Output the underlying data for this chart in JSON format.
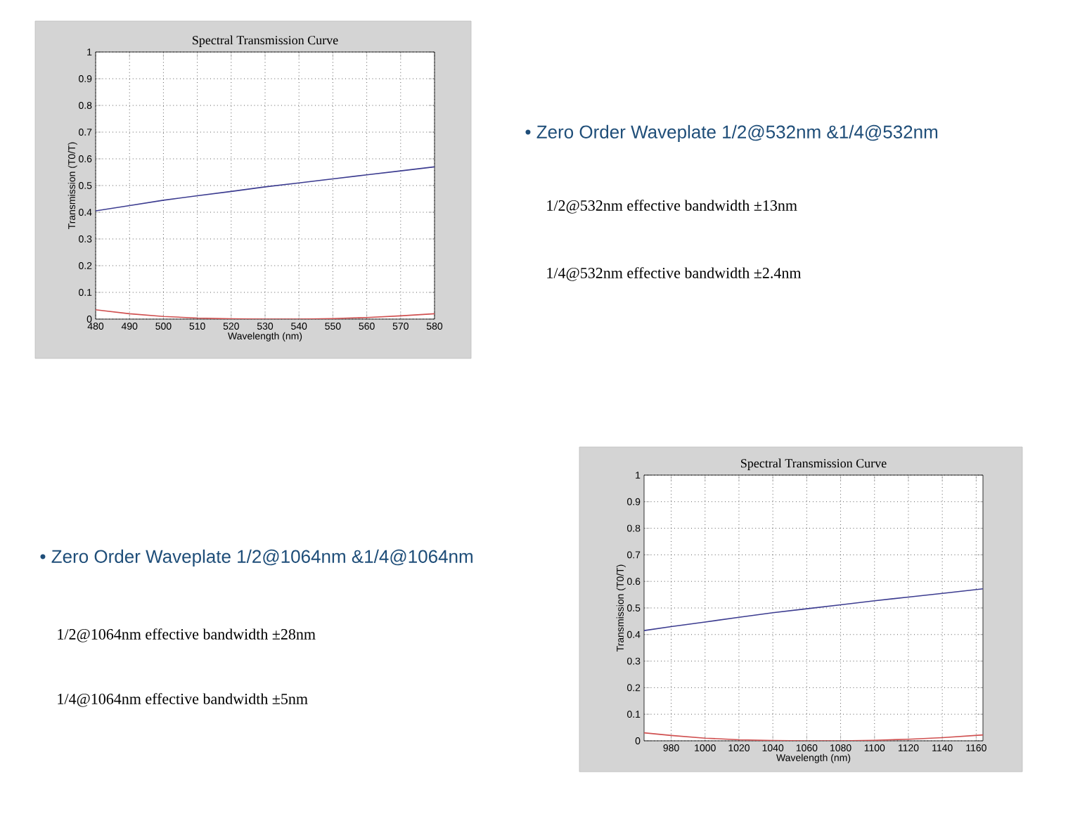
{
  "chart_data": [
    {
      "type": "line",
      "title": "Spectral Transmission Curve",
      "xlabel": "Wavelength (nm)",
      "ylabel": "Transmission (T0/T)",
      "x": [
        480,
        490,
        500,
        510,
        520,
        530,
        540,
        550,
        560,
        570,
        580
      ],
      "series": [
        {
          "color": "#3c3c90",
          "values": [
            0.405,
            0.425,
            0.445,
            0.462,
            0.478,
            0.495,
            0.51,
            0.525,
            0.54,
            0.555,
            0.57
          ]
        },
        {
          "color": "#d05050",
          "values": [
            0.035,
            0.02,
            0.01,
            0.004,
            0.001,
            0,
            0,
            0.002,
            0.006,
            0.012,
            0.02
          ]
        }
      ],
      "xlim": [
        480,
        580
      ],
      "ylim": [
        0,
        1
      ],
      "xticks": [
        480,
        490,
        500,
        510,
        520,
        530,
        540,
        550,
        560,
        570,
        580
      ],
      "yticks": [
        0,
        0.1,
        0.2,
        0.3,
        0.4,
        0.5,
        0.6,
        0.7,
        0.8,
        0.9,
        1
      ],
      "grid": true
    },
    {
      "type": "other",
      "title": "• Zero Order Waveplate 1/2@532nm &1/4@532nm",
      "annotations": [
        "1/2@532nm effective bandwidth ±13nm",
        "1/4@532nm effective bandwidth ±2.4nm"
      ]
    },
    {
      "type": "other",
      "title": "• Zero Order Waveplate 1/2@1064nm &1/4@1064nm",
      "annotations": [
        "1/2@1064nm effective bandwidth ±28nm",
        "1/4@1064nm effective bandwidth ±5nm"
      ]
    },
    {
      "type": "line",
      "title": "Spectral Transmission Curve",
      "xlabel": "Wavelength (nm)",
      "ylabel": "Transmission (T0/T)",
      "x": [
        964,
        980,
        1000,
        1020,
        1040,
        1060,
        1080,
        1100,
        1120,
        1140,
        1164
      ],
      "series": [
        {
          "color": "#3c3c90",
          "values": [
            0.415,
            0.43,
            0.447,
            0.465,
            0.482,
            0.497,
            0.512,
            0.527,
            0.541,
            0.555,
            0.572
          ]
        },
        {
          "color": "#d05050",
          "values": [
            0.03,
            0.02,
            0.01,
            0.004,
            0.001,
            0,
            0,
            0.002,
            0.006,
            0.012,
            0.022
          ]
        }
      ],
      "xlim": [
        964,
        1164
      ],
      "ylim": [
        0,
        1
      ],
      "xticks": [
        980,
        1000,
        1020,
        1040,
        1060,
        1080,
        1100,
        1120,
        1140,
        1160
      ],
      "yticks": [
        0,
        0.1,
        0.2,
        0.3,
        0.4,
        0.5,
        0.6,
        0.7,
        0.8,
        0.9,
        1
      ],
      "grid": true
    }
  ]
}
